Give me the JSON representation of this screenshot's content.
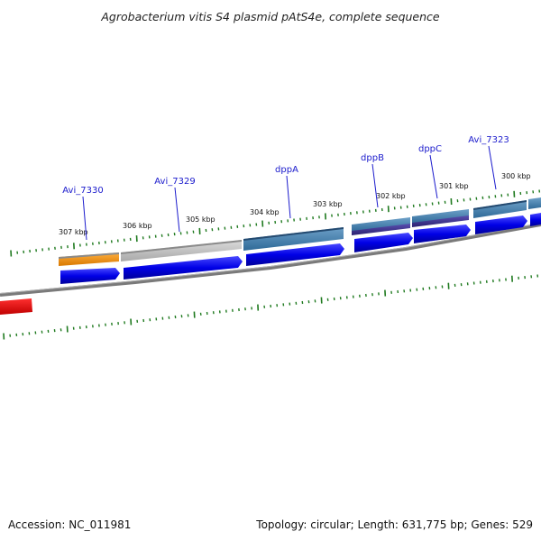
{
  "title": "Agrobacterium vitis S4 plasmid pAtS4e, complete sequence",
  "footer": {
    "accession": "Accession: NC_011981",
    "topology": "Topology: circular; Length: 631,775 bp; Genes: 529"
  },
  "kbp_labels": [
    "307 kbp",
    "306 kbp",
    "305 kbp",
    "304 kbp",
    "303 kbp",
    "302 kbp",
    "301 kbp",
    "300 kbp"
  ],
  "genes": [
    {
      "label": "Avi_7330"
    },
    {
      "label": "Avi_7329"
    },
    {
      "label": "dppA"
    },
    {
      "label": "dppB"
    },
    {
      "label": "dppC"
    },
    {
      "label": "Avi_7323"
    }
  ],
  "colors": {
    "backbone": "#808080",
    "cds": "#0000e6",
    "tick": "#1f7a1f",
    "gene_label": "#1a1acc",
    "feature_orange": "#f08c00",
    "feature_grey": "#bdbdbd",
    "feature_steel": "#3f7fb0",
    "feature_purple": "#3b2f8f",
    "feature_red": "#e00000"
  }
}
